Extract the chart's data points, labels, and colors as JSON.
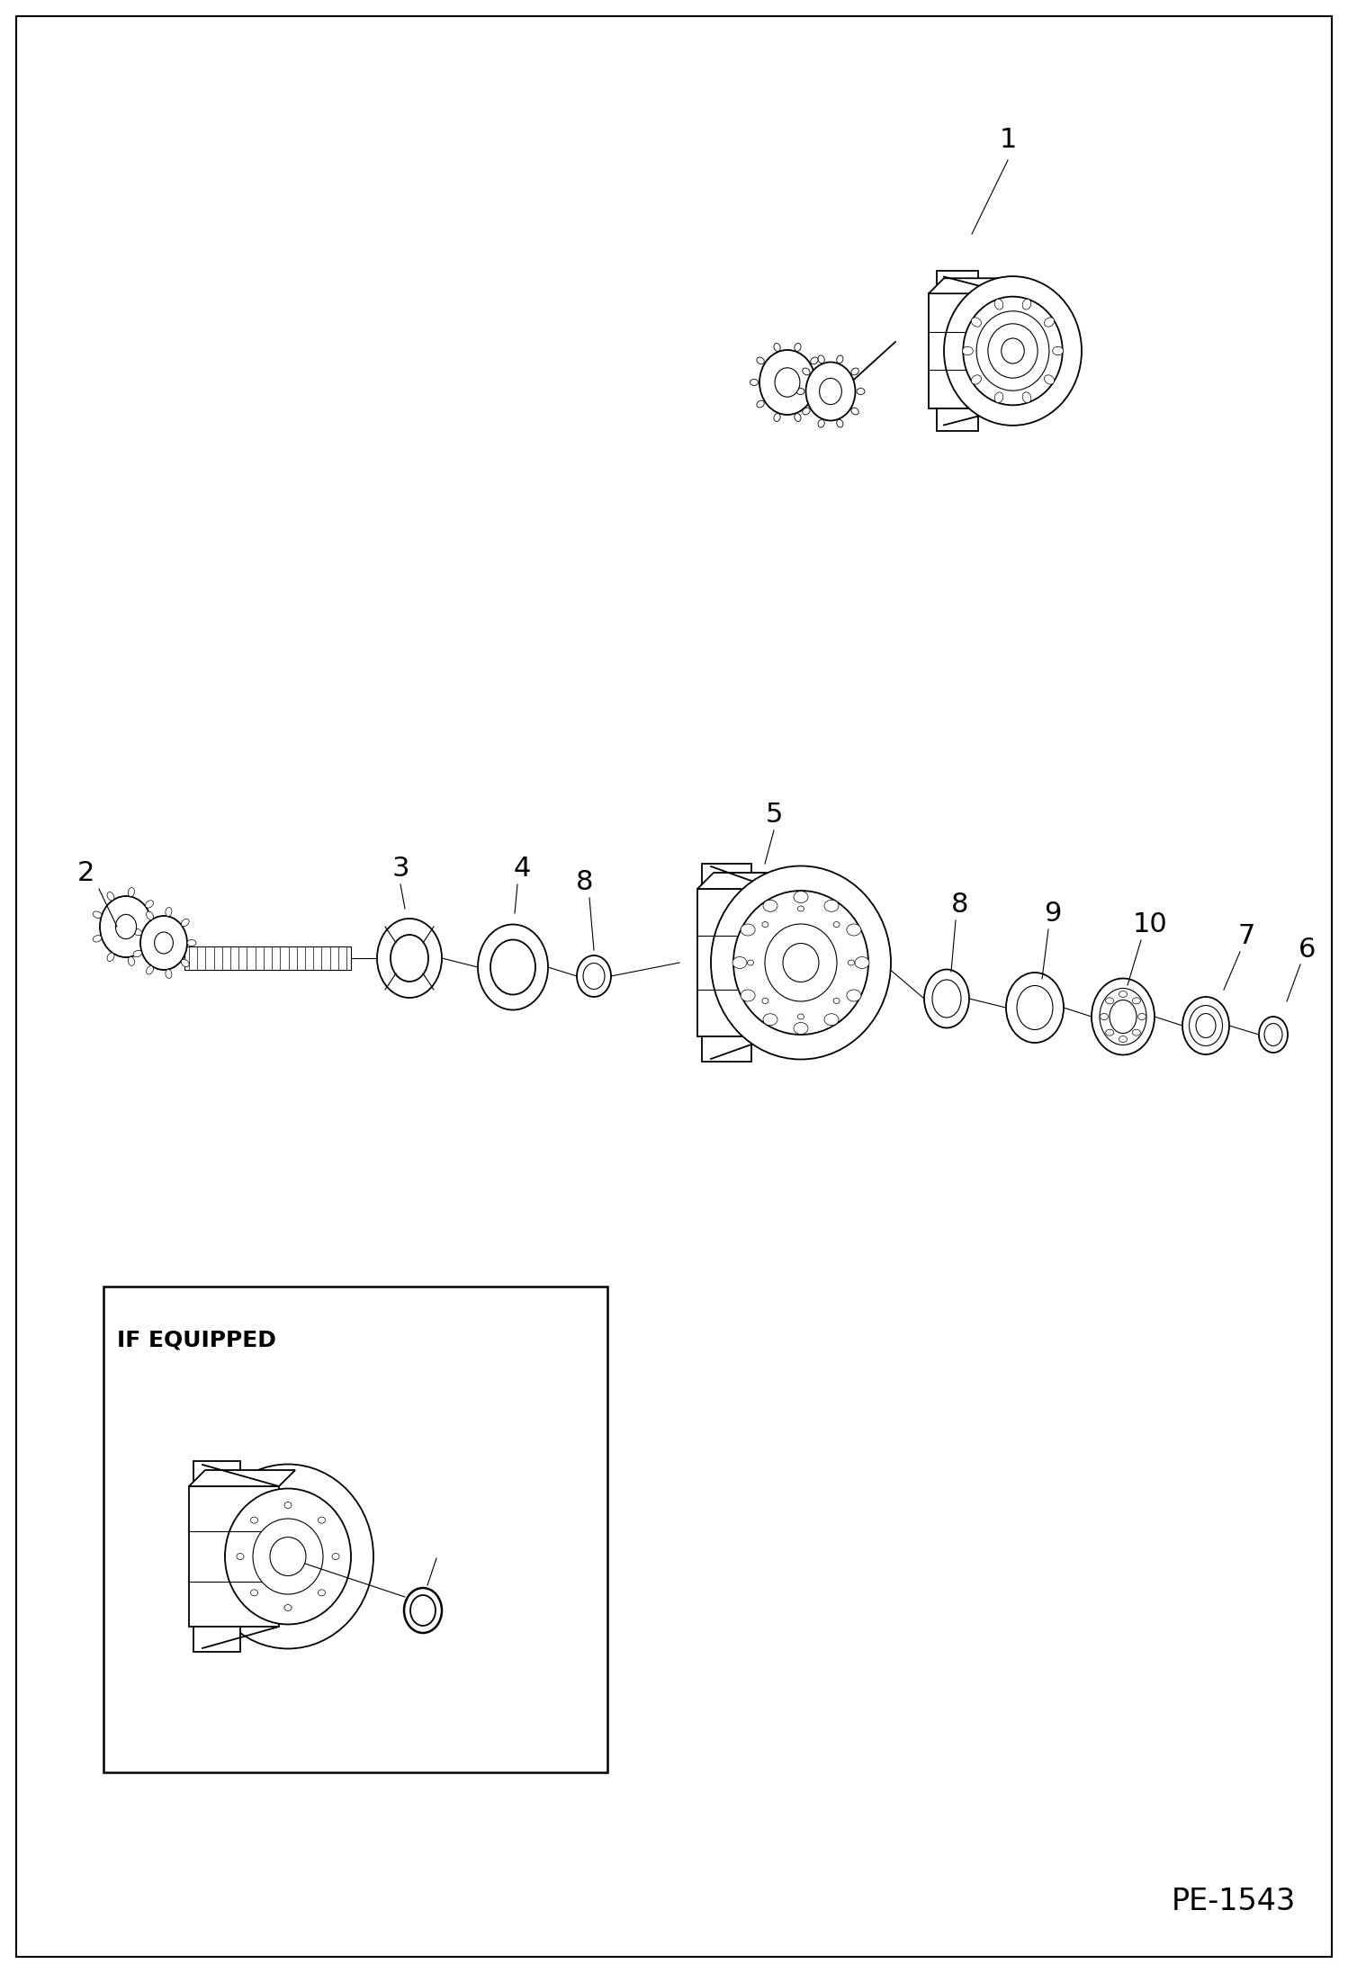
{
  "page_id": "PE-1543",
  "background_color": "#ffffff",
  "line_color": "#000000",
  "fig_width": 14.98,
  "fig_height": 21.93,
  "dpi": 100,
  "page_label": "PE-1543"
}
